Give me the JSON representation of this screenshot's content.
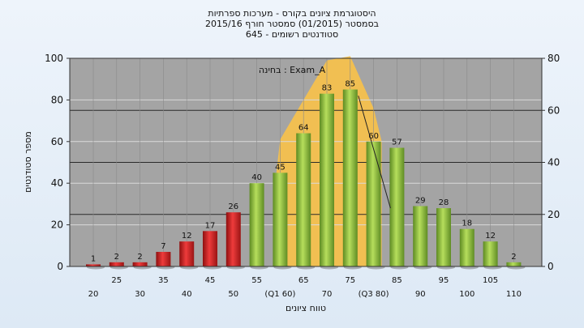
{
  "title_lines": [
    "היסטוגרמת ציונים בקורס - מערכות ספרתיות",
    "בסמסטר (01/2015) סמסטר חורף 2015/16",
    "סטודנטים רשומים - 645"
  ],
  "chart_data": {
    "type": "bar",
    "title": "היסטוגרמת ציונים בקורס - מערכות ספרתיות",
    "xlabel": "טווח ציונים",
    "ylabel": "מספר סטודנטים",
    "annotation": "בחינה : Exam_A",
    "ylim": [
      0,
      100
    ],
    "ylim_right": [
      0,
      80
    ],
    "yticks": [
      0,
      20,
      40,
      60,
      80,
      100
    ],
    "yticks_right": [
      0,
      20,
      40,
      60,
      80
    ],
    "grid": true,
    "x_tick_labels": [
      {
        "x": 20,
        "label": "20",
        "row": 2
      },
      {
        "x": 25,
        "label": "25",
        "row": 1
      },
      {
        "x": 30,
        "label": "30",
        "row": 2
      },
      {
        "x": 35,
        "label": "35",
        "row": 1
      },
      {
        "x": 40,
        "label": "40",
        "row": 2
      },
      {
        "x": 45,
        "label": "45",
        "row": 1
      },
      {
        "x": 50,
        "label": "50",
        "row": 2
      },
      {
        "x": 55,
        "label": "55",
        "row": 1
      },
      {
        "x": 60,
        "label": "(Q1 60)",
        "row": 2
      },
      {
        "x": 65,
        "label": "65",
        "row": 1
      },
      {
        "x": 70,
        "label": "70",
        "row": 2
      },
      {
        "x": 75,
        "label": "75",
        "row": 1
      },
      {
        "x": 80,
        "label": "(Q3 80)",
        "row": 2
      },
      {
        "x": 85,
        "label": "85",
        "row": 1
      },
      {
        "x": 90,
        "label": "90",
        "row": 2
      },
      {
        "x": 95,
        "label": "95",
        "row": 1
      },
      {
        "x": 100,
        "label": "100",
        "row": 2
      },
      {
        "x": 105,
        "label": "105",
        "row": 1
      },
      {
        "x": 110,
        "label": "110",
        "row": 2
      }
    ],
    "bars": [
      {
        "x": 20,
        "value": 1,
        "color": "red"
      },
      {
        "x": 25,
        "value": 2,
        "color": "red"
      },
      {
        "x": 30,
        "value": 2,
        "color": "red"
      },
      {
        "x": 35,
        "value": 7,
        "color": "red"
      },
      {
        "x": 40,
        "value": 12,
        "color": "red"
      },
      {
        "x": 45,
        "value": 17,
        "color": "red"
      },
      {
        "x": 50,
        "value": 26,
        "color": "red"
      },
      {
        "x": 55,
        "value": 40,
        "color": "green"
      },
      {
        "x": 60,
        "value": 45,
        "color": "green"
      },
      {
        "x": 65,
        "value": 64,
        "color": "green"
      },
      {
        "x": 70,
        "value": 83,
        "color": "green"
      },
      {
        "x": 75,
        "value": 85,
        "color": "green"
      },
      {
        "x": 80,
        "value": 60,
        "color": "green"
      },
      {
        "x": 85,
        "value": 57,
        "color": "green"
      },
      {
        "x": 90,
        "value": 29,
        "color": "green"
      },
      {
        "x": 95,
        "value": 28,
        "color": "green"
      },
      {
        "x": 100,
        "value": 18,
        "color": "green"
      },
      {
        "x": 105,
        "value": 12,
        "color": "green"
      },
      {
        "x": 110,
        "value": 2,
        "color": "green"
      }
    ],
    "band": {
      "x_start": 60,
      "x_end": 80
    },
    "colors": {
      "plot_bg": "#a4a4a4",
      "red_bar": "#d0262b",
      "green_bar": "#98c247",
      "band": "#f6c14e"
    }
  }
}
